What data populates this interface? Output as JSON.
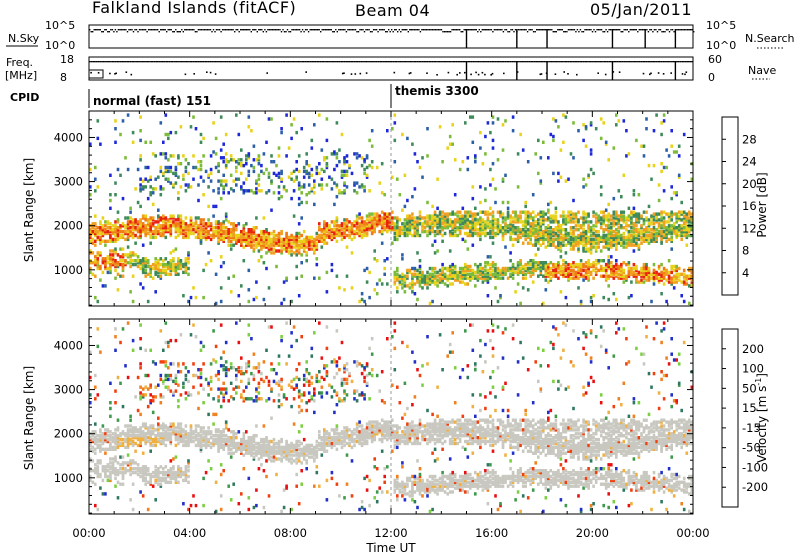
{
  "header": {
    "station": "Falkland Islands (fitACF)",
    "beam": "Beam 04",
    "date": "05/Jan/2011"
  },
  "strips": {
    "nsky_label": "N.Sky",
    "nsky_ticks": [
      "10^5",
      "10^0"
    ],
    "nsearch_label": "N.Search",
    "nsearch_ticks": [
      "10^5",
      "10^0"
    ],
    "freq_label": "Freq.",
    "freq_unit": "[MHz]",
    "freq_ticks": [
      "18",
      "8"
    ],
    "nave_label": "Nave",
    "nave_ticks": [
      "60",
      "0"
    ],
    "cpid_label": "CPID",
    "cpid_modes": [
      {
        "name": "normal (fast) 151",
        "start_hour": 0
      },
      {
        "name": "themis 3300",
        "start_hour": 12
      }
    ],
    "nsky_drop_hours": [
      15,
      17,
      18.2,
      20.8,
      22.1,
      23.3
    ],
    "freq_drop_hours": [
      15,
      17,
      18.2,
      20.8,
      23.3
    ]
  },
  "chart_data": [
    {
      "type": "heatmap",
      "name": "power",
      "ylabel": "Slant Range [km]",
      "xlabel": "",
      "x_range_hours": [
        0,
        24
      ],
      "ylim": [
        180,
        4600
      ],
      "yticks": [
        "1000",
        "2000",
        "3000",
        "4000"
      ],
      "ytick_values": [
        1000,
        2000,
        3000,
        4000
      ],
      "colorbar_label": "Power [dB]",
      "colorbar_ticks": [
        "4",
        "8",
        "12",
        "16",
        "20",
        "24",
        "28"
      ],
      "colorbar_colors": [
        "#1e28d8",
        "#2c5fa8",
        "#3e8a5a",
        "#7cbc3a",
        "#e8d21a",
        "#f0a020",
        "#f07a14",
        "#e8220e"
      ]
    },
    {
      "type": "heatmap",
      "name": "velocity",
      "ylabel": "Slant Range [km]",
      "xlabel": "Time UT",
      "x_range_hours": [
        0,
        24
      ],
      "ylim": [
        180,
        4600
      ],
      "yticks": [
        "1000",
        "2000",
        "3000",
        "4000"
      ],
      "ytick_values": [
        1000,
        2000,
        3000,
        4000
      ],
      "xticks": [
        "00:00",
        "04:00",
        "08:00",
        "12:00",
        "16:00",
        "20:00",
        "00:00"
      ],
      "xtick_hours": [
        0,
        4,
        8,
        12,
        16,
        20,
        24
      ],
      "colorbar_label": "Velocity [m s^-1]",
      "colorbar_ticks": [
        "200",
        "100",
        "50",
        "15",
        "-15",
        "-50",
        "-100",
        "-200"
      ],
      "colorbar_colors": [
        "#2030c8",
        "#2e7860",
        "#3e9a4a",
        "#7cd040",
        "#c8c8c0",
        "#f0b040",
        "#f08020",
        "#f04010",
        "#e81010"
      ]
    }
  ]
}
